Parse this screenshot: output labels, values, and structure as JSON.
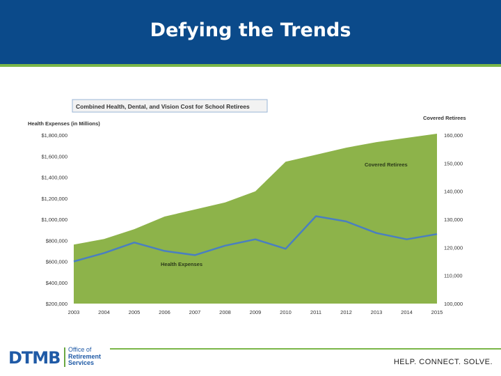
{
  "slide": {
    "title": "Defying the Trends",
    "tagline": "HELP. CONNECT. SOLVE."
  },
  "logo": {
    "acronym": "DTMB",
    "line1": "Office of",
    "line2": "Retirement",
    "line3": "Services"
  },
  "colors": {
    "header": "#0b4a8a",
    "accent": "#7ab648",
    "area": "#8db34a",
    "line": "#4a7fc1"
  },
  "chart_data": {
    "type": "area",
    "title": "Combined Health, Dental, and Vision Cost for School Retirees",
    "ylabel": "Health Expenses (in Millions)",
    "y2label": "Covered Retirees",
    "categories": [
      "2003",
      "2004",
      "2005",
      "2006",
      "2007",
      "2008",
      "2009",
      "2010",
      "2011",
      "2012",
      "2013",
      "2014",
      "2015"
    ],
    "ylim": [
      200000,
      1800000
    ],
    "y2lim": [
      100000,
      160000
    ],
    "yticks": [
      "$200,000",
      "$400,000",
      "$600,000",
      "$800,000",
      "$1,000,000",
      "$1,200,000",
      "$1,400,000",
      "$1,600,000",
      "$1,800,000"
    ],
    "y2ticks": [
      "100,000",
      "110,000",
      "120,000",
      "130,000",
      "140,000",
      "150,000",
      "160,000"
    ],
    "series": [
      {
        "name": "Covered Retirees",
        "kind": "area",
        "axis": "right",
        "values": [
          121000,
          123000,
          126500,
          131000,
          133500,
          136000,
          140000,
          150500,
          153000,
          155500,
          157500,
          159000,
          160500
        ]
      },
      {
        "name": "Health Expenses",
        "kind": "line",
        "axis": "left",
        "values": [
          600000,
          680000,
          780000,
          700000,
          660000,
          750000,
          810000,
          720000,
          1030000,
          980000,
          870000,
          810000,
          860000
        ]
      }
    ],
    "annotations": [
      "Covered Retirees",
      "Health Expenses"
    ],
    "grid": false
  }
}
